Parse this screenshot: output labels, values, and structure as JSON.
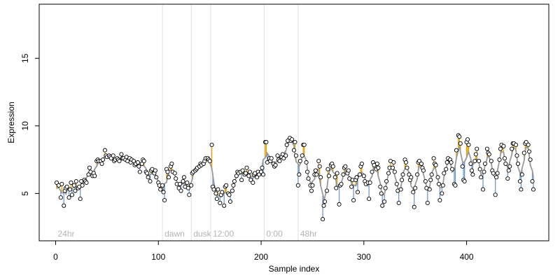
{
  "chart_data": {
    "type": "scatter",
    "title": "",
    "xlabel": "Sample index",
    "ylabel": "Expression",
    "xlim": [
      -16,
      480
    ],
    "ylim": [
      1.5,
      19
    ],
    "x_ticks": [
      0,
      100,
      200,
      300,
      400
    ],
    "y_ticks": [
      5,
      10,
      15
    ],
    "grid": false,
    "colors": {
      "points_fill": "#ffffff",
      "points_stroke": "#000000",
      "trend_line": "#999999",
      "residual_up": "#e69f00",
      "residual_down": "#6f9bd1",
      "phase_line": "#e0e0e0",
      "phase_label": "#b3b3b3"
    },
    "phases": [
      {
        "label": "24hr",
        "x": 0
      },
      {
        "label": "dawn",
        "x": 104
      },
      {
        "label": "dusk",
        "x": 132
      },
      {
        "label": "12:00",
        "x": 151
      },
      {
        "label": "0:00",
        "x": 203
      },
      {
        "label": "48hr",
        "x": 236
      }
    ],
    "points": [
      [
        1,
        5.8
      ],
      [
        3,
        5.6
      ],
      [
        5,
        4.7
      ],
      [
        6,
        5.7
      ],
      [
        8,
        4.1
      ],
      [
        9,
        5.2
      ],
      [
        10,
        5.4
      ],
      [
        11,
        5.5
      ],
      [
        13,
        4.7
      ],
      [
        14,
        5.3
      ],
      [
        15,
        5.8
      ],
      [
        16,
        4.9
      ],
      [
        18,
        5.6
      ],
      [
        19,
        5.2
      ],
      [
        20,
        5.9
      ],
      [
        22,
        5.4
      ],
      [
        23,
        5.5
      ],
      [
        24,
        4.6
      ],
      [
        25,
        5.9
      ],
      [
        26,
        5.6
      ],
      [
        28,
        6.0
      ],
      [
        29,
        5.9
      ],
      [
        30,
        5.8
      ],
      [
        32,
        6.4
      ],
      [
        33,
        6.9
      ],
      [
        34,
        6.6
      ],
      [
        36,
        6.3
      ],
      [
        37,
        6.5
      ],
      [
        38,
        6.3
      ],
      [
        40,
        7.4
      ],
      [
        41,
        7.5
      ],
      [
        42,
        7.4
      ],
      [
        44,
        7.4
      ],
      [
        45,
        7.2
      ],
      [
        46,
        7.5
      ],
      [
        48,
        8.2
      ],
      [
        49,
        7.8
      ],
      [
        50,
        7.7
      ],
      [
        52,
        7.8
      ],
      [
        53,
        7.7
      ],
      [
        54,
        7.6
      ],
      [
        56,
        7.8
      ],
      [
        57,
        7.4
      ],
      [
        58,
        7.5
      ],
      [
        60,
        7.6
      ],
      [
        61,
        7.5
      ],
      [
        62,
        7.4
      ],
      [
        64,
        7.9
      ],
      [
        65,
        7.6
      ],
      [
        66,
        7.6
      ],
      [
        68,
        7.5
      ],
      [
        69,
        7.7
      ],
      [
        70,
        7.4
      ],
      [
        72,
        7.6
      ],
      [
        73,
        7.3
      ],
      [
        74,
        7.5
      ],
      [
        76,
        7.4
      ],
      [
        77,
        7.1
      ],
      [
        78,
        7.2
      ],
      [
        80,
        7.3
      ],
      [
        81,
        7.0
      ],
      [
        82,
        6.6
      ],
      [
        84,
        7.2
      ],
      [
        85,
        7.5
      ],
      [
        86,
        7.4
      ],
      [
        88,
        6.6
      ],
      [
        89,
        6.5
      ],
      [
        90,
        6.2
      ],
      [
        92,
        5.9
      ],
      [
        93,
        6.7
      ],
      [
        94,
        6.8
      ],
      [
        96,
        6.5
      ],
      [
        97,
        6.7
      ],
      [
        98,
        6.2
      ],
      [
        100,
        5.8
      ],
      [
        101,
        5.6
      ],
      [
        102,
        5.3
      ],
      [
        104,
        5.6
      ],
      [
        105,
        5.1
      ],
      [
        106,
        4.5
      ],
      [
        108,
        6.8
      ],
      [
        109,
        6.6
      ],
      [
        110,
        6.2
      ],
      [
        112,
        7.0
      ],
      [
        113,
        7.2
      ],
      [
        114,
        6.6
      ],
      [
        116,
        6.5
      ],
      [
        117,
        6.1
      ],
      [
        118,
        5.7
      ],
      [
        120,
        5.4
      ],
      [
        121,
        5.7
      ],
      [
        122,
        5.2
      ],
      [
        124,
        5.9
      ],
      [
        125,
        6.2
      ],
      [
        126,
        5.5
      ],
      [
        128,
        5.8
      ],
      [
        129,
        5.4
      ],
      [
        130,
        4.9
      ],
      [
        132,
        5.6
      ],
      [
        133,
        6.5
      ],
      [
        134,
        6.6
      ],
      [
        136,
        6.7
      ],
      [
        137,
        6.8
      ],
      [
        138,
        6.9
      ],
      [
        140,
        7.0
      ],
      [
        141,
        7.2
      ],
      [
        142,
        7.1
      ],
      [
        144,
        7.2
      ],
      [
        145,
        7.4
      ],
      [
        146,
        7.6
      ],
      [
        148,
        7.6
      ],
      [
        149,
        7.5
      ],
      [
        150,
        7.4
      ],
      [
        152,
        8.6
      ],
      [
        153,
        5.5
      ],
      [
        154,
        5.3
      ],
      [
        156,
        5.0
      ],
      [
        157,
        4.6
      ],
      [
        158,
        5.3
      ],
      [
        160,
        4.3
      ],
      [
        161,
        4.9
      ],
      [
        162,
        5.1
      ],
      [
        164,
        4.1
      ],
      [
        165,
        5.5
      ],
      [
        166,
        5.6
      ],
      [
        168,
        5.0
      ],
      [
        169,
        4.9
      ],
      [
        170,
        4.4
      ],
      [
        172,
        5.2
      ],
      [
        173,
        5.6
      ],
      [
        174,
        5.9
      ],
      [
        176,
        6.3
      ],
      [
        177,
        6.6
      ],
      [
        178,
        6.5
      ],
      [
        180,
        6.6
      ],
      [
        181,
        6.0
      ],
      [
        182,
        6.7
      ],
      [
        184,
        6.4
      ],
      [
        185,
        6.5
      ],
      [
        186,
        6.9
      ],
      [
        188,
        6.3
      ],
      [
        189,
        6.6
      ],
      [
        190,
        6.0
      ],
      [
        192,
        5.8
      ],
      [
        193,
        6.4
      ],
      [
        194,
        6.5
      ],
      [
        196,
        6.2
      ],
      [
        197,
        6.6
      ],
      [
        198,
        6.4
      ],
      [
        200,
        6.6
      ],
      [
        201,
        6.9
      ],
      [
        202,
        6.4
      ],
      [
        204,
        8.8
      ],
      [
        205,
        8.8
      ],
      [
        206,
        7.3
      ],
      [
        208,
        7.6
      ],
      [
        209,
        7.4
      ],
      [
        210,
        7.6
      ],
      [
        212,
        7.2
      ],
      [
        213,
        7.0
      ],
      [
        214,
        7.1
      ],
      [
        216,
        7.8
      ],
      [
        217,
        7.5
      ],
      [
        218,
        7.4
      ],
      [
        220,
        7.7
      ],
      [
        221,
        7.9
      ],
      [
        222,
        7.6
      ],
      [
        224,
        7.8
      ],
      [
        225,
        8.6
      ],
      [
        226,
        8.9
      ],
      [
        228,
        9.1
      ],
      [
        229,
        8.9
      ],
      [
        230,
        9.0
      ],
      [
        232,
        8.2
      ],
      [
        233,
        8.8
      ],
      [
        234,
        7.8
      ],
      [
        236,
        5.6
      ],
      [
        237,
        6.4
      ],
      [
        238,
        7.4
      ],
      [
        240,
        7.8
      ],
      [
        241,
        8.6
      ],
      [
        242,
        8.6
      ],
      [
        244,
        7.3
      ],
      [
        245,
        6.6
      ],
      [
        246,
        6.1
      ],
      [
        248,
        5.6
      ],
      [
        249,
        5.2
      ],
      [
        250,
        5.6
      ],
      [
        252,
        6.4
      ],
      [
        253,
        6.7
      ],
      [
        254,
        6.4
      ],
      [
        256,
        7.4
      ],
      [
        257,
        7.0
      ],
      [
        258,
        6.2
      ],
      [
        260,
        3.1
      ],
      [
        261,
        4.1
      ],
      [
        262,
        4.4
      ],
      [
        264,
        5.2
      ],
      [
        265,
        6.8
      ],
      [
        266,
        6.3
      ],
      [
        268,
        7.1
      ],
      [
        269,
        7.2
      ],
      [
        270,
        7.0
      ],
      [
        272,
        6.2
      ],
      [
        273,
        5.4
      ],
      [
        274,
        6.5
      ],
      [
        276,
        4.2
      ],
      [
        277,
        5.6
      ],
      [
        278,
        5.7
      ],
      [
        280,
        6.4
      ],
      [
        281,
        6.9
      ],
      [
        282,
        7.0
      ],
      [
        284,
        6.5
      ],
      [
        285,
        6.7
      ],
      [
        286,
        6.1
      ],
      [
        288,
        5.5
      ],
      [
        289,
        6.0
      ],
      [
        290,
        4.5
      ],
      [
        292,
        6.0
      ],
      [
        293,
        6.2
      ],
      [
        294,
        5.1
      ],
      [
        296,
        6.4
      ],
      [
        297,
        7.0
      ],
      [
        298,
        7.2
      ],
      [
        300,
        6.3
      ],
      [
        301,
        5.9
      ],
      [
        302,
        5.7
      ],
      [
        304,
        5.8
      ],
      [
        305,
        4.6
      ],
      [
        306,
        5.8
      ],
      [
        308,
        6.6
      ],
      [
        309,
        7.3
      ],
      [
        310,
        7.1
      ],
      [
        312,
        6.8
      ],
      [
        313,
        7.2
      ],
      [
        314,
        6.9
      ],
      [
        316,
        5.5
      ],
      [
        317,
        5.0
      ],
      [
        318,
        4.1
      ],
      [
        320,
        4.4
      ],
      [
        321,
        5.4
      ],
      [
        322,
        5.9
      ],
      [
        324,
        6.5
      ],
      [
        325,
        6.9
      ],
      [
        326,
        7.4
      ],
      [
        328,
        6.9
      ],
      [
        329,
        7.3
      ],
      [
        330,
        6.6
      ],
      [
        332,
        5.7
      ],
      [
        333,
        5.2
      ],
      [
        334,
        4.3
      ],
      [
        336,
        5.3
      ],
      [
        337,
        6.0
      ],
      [
        338,
        6.4
      ],
      [
        340,
        7.5
      ],
      [
        341,
        7.3
      ],
      [
        342,
        6.9
      ],
      [
        344,
        6.4
      ],
      [
        345,
        6.0
      ],
      [
        346,
        6.2
      ],
      [
        348,
        5.1
      ],
      [
        349,
        4.0
      ],
      [
        350,
        5.4
      ],
      [
        352,
        6.4
      ],
      [
        353,
        7.3
      ],
      [
        354,
        7.4
      ],
      [
        356,
        7.2
      ],
      [
        357,
        6.9
      ],
      [
        358,
        6.7
      ],
      [
        360,
        5.9
      ],
      [
        361,
        5.4
      ],
      [
        362,
        4.3
      ],
      [
        364,
        5.3
      ],
      [
        365,
        6.0
      ],
      [
        366,
        6.4
      ],
      [
        368,
        7.6
      ],
      [
        369,
        7.2
      ],
      [
        370,
        7.1
      ],
      [
        372,
        6.2
      ],
      [
        373,
        5.7
      ],
      [
        374,
        4.5
      ],
      [
        376,
        5.0
      ],
      [
        377,
        5.6
      ],
      [
        378,
        6.5
      ],
      [
        380,
        6.8
      ],
      [
        381,
        7.3
      ],
      [
        382,
        7.6
      ],
      [
        384,
        7.5
      ],
      [
        385,
        7.3
      ],
      [
        386,
        6.8
      ],
      [
        388,
        5.7
      ],
      [
        389,
        5.6
      ],
      [
        390,
        8.2
      ],
      [
        392,
        9.3
      ],
      [
        393,
        9.2
      ],
      [
        394,
        8.7
      ],
      [
        396,
        7.0
      ],
      [
        397,
        6.0
      ],
      [
        398,
        5.9
      ],
      [
        400,
        8.8
      ],
      [
        401,
        9.0
      ],
      [
        402,
        8.6
      ],
      [
        404,
        7.2
      ],
      [
        405,
        6.7
      ],
      [
        406,
        6.4
      ],
      [
        408,
        7.4
      ],
      [
        409,
        7.9
      ],
      [
        410,
        8.3
      ],
      [
        412,
        7.4
      ],
      [
        413,
        6.8
      ],
      [
        414,
        6.2
      ],
      [
        416,
        5.3
      ],
      [
        417,
        6.6
      ],
      [
        418,
        7.2
      ],
      [
        420,
        8.3
      ],
      [
        421,
        8.0
      ],
      [
        422,
        7.9
      ],
      [
        424,
        7.4
      ],
      [
        425,
        6.7
      ],
      [
        426,
        6.5
      ],
      [
        428,
        4.9
      ],
      [
        429,
        6.2
      ],
      [
        430,
        6.5
      ],
      [
        432,
        7.5
      ],
      [
        433,
        8.3
      ],
      [
        434,
        8.6
      ],
      [
        436,
        8.5
      ],
      [
        437,
        7.6
      ],
      [
        438,
        7.2
      ],
      [
        440,
        6.1
      ],
      [
        441,
        6.7
      ],
      [
        442,
        7.0
      ],
      [
        444,
        8.3
      ],
      [
        445,
        8.7
      ],
      [
        446,
        8.7
      ],
      [
        448,
        8.6
      ],
      [
        449,
        7.8
      ],
      [
        450,
        7.2
      ],
      [
        452,
        5.9
      ],
      [
        453,
        5.3
      ],
      [
        454,
        6.4
      ],
      [
        456,
        8.0
      ],
      [
        457,
        8.7
      ],
      [
        458,
        8.8
      ],
      [
        460,
        8.6
      ],
      [
        461,
        8.1
      ],
      [
        462,
        7.5
      ],
      [
        464,
        5.9
      ],
      [
        465,
        5.3
      ]
    ]
  }
}
